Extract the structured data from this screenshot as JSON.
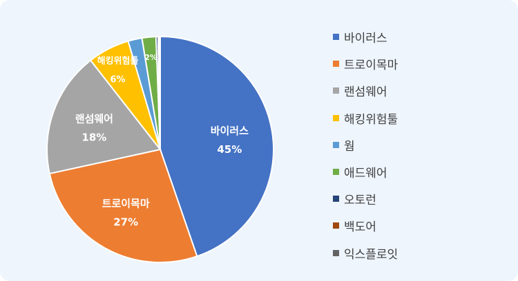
{
  "chart_data": {
    "type": "pie",
    "title": "",
    "categories": [
      "바이러스",
      "트로이목마",
      "랜섬웨어",
      "해킹위험툴",
      "웜",
      "애드웨어",
      "오토런",
      "백도어",
      "익스플로잇"
    ],
    "values": [
      45,
      27,
      18,
      6,
      2,
      2,
      0.3,
      0.2,
      0.1
    ],
    "data_labels": [
      "45%",
      "27%",
      "18%",
      "6%",
      "",
      "2%",
      "",
      "",
      ""
    ],
    "colors": [
      "#4472c4",
      "#ed7d31",
      "#a5a5a5",
      "#ffc000",
      "#5b9bd5",
      "#70ad47",
      "#264478",
      "#9e480e",
      "#636363"
    ],
    "legend_position": "right",
    "grid": false
  }
}
